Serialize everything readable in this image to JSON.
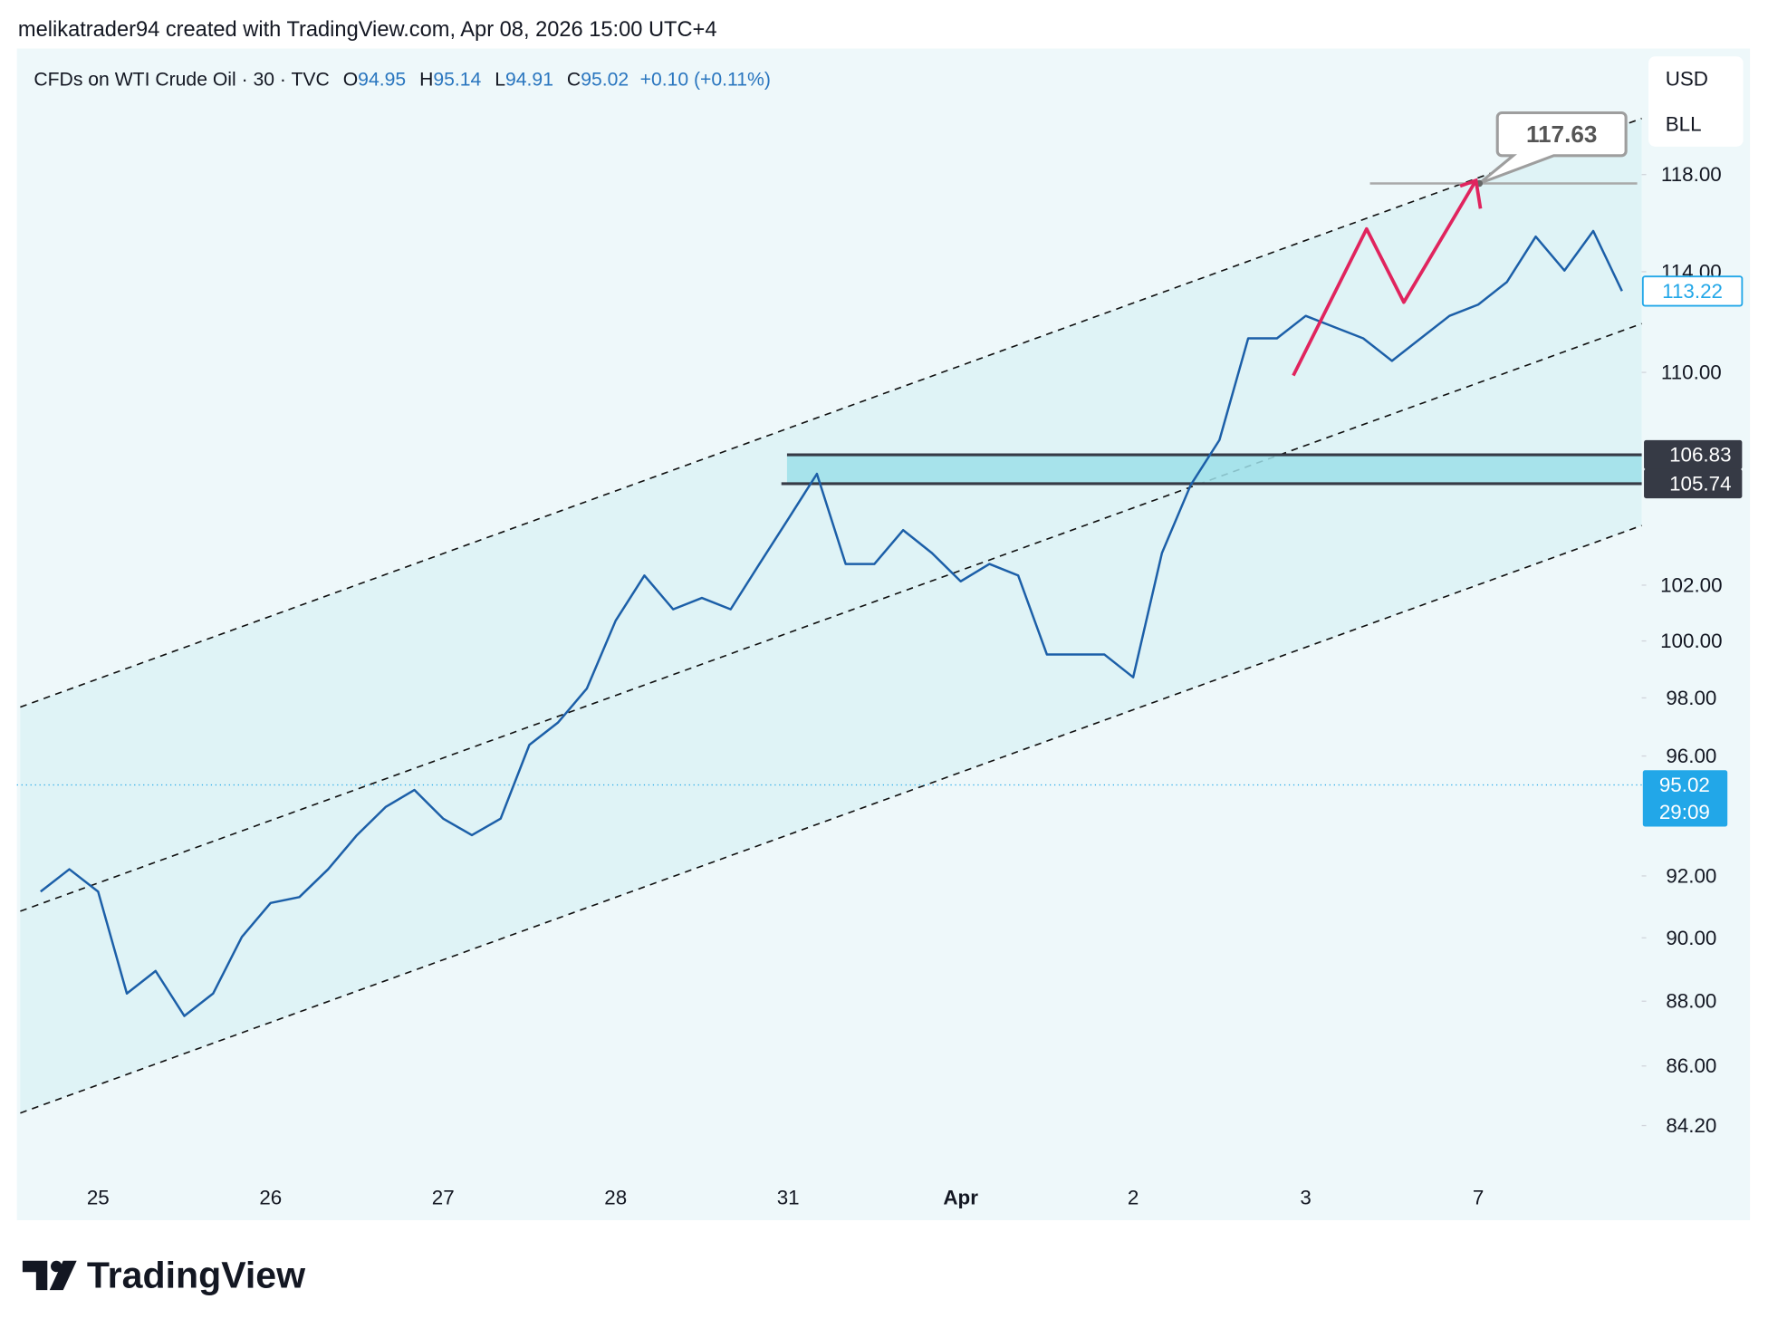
{
  "header": {
    "author_line": "melikatrader94 created with TradingView.com, Apr 08, 2026 15:00 UTC+4"
  },
  "chart_data": {
    "type": "line",
    "title": "CFDs on WTI Crude Oil · 30 · TVC",
    "ohlc": [
      {
        "label": "O",
        "value": 94.95
      },
      {
        "label": "H",
        "value": 95.14
      },
      {
        "label": "L",
        "value": 94.91
      },
      {
        "label": "C",
        "value": 95.02
      }
    ],
    "change": "+0.10 (+0.11%)",
    "currency": "USD",
    "unit": "BLL",
    "categories": [
      null,
      null,
      "25",
      null,
      null,
      null,
      null,
      null,
      "26",
      null,
      null,
      null,
      null,
      null,
      "27",
      null,
      null,
      null,
      null,
      null,
      "28",
      null,
      null,
      null,
      null,
      null,
      "31",
      null,
      null,
      null,
      null,
      null,
      "Apr",
      null,
      null,
      null,
      null,
      null,
      "2",
      null,
      null,
      null,
      null,
      null,
      "3",
      null,
      null,
      null,
      null,
      null,
      "7",
      null,
      null,
      null,
      null,
      null
    ],
    "series": [
      {
        "color": "#1c5fa8",
        "values": [
          91.49,
          92.22,
          91.49,
          88.24,
          88.95,
          87.54,
          88.24,
          90.03,
          91.12,
          91.31,
          92.22,
          93.34,
          94.28,
          94.85,
          93.89,
          93.34,
          93.89,
          96.38,
          97.15,
          98.33,
          100.72,
          102.35,
          101.13,
          101.54,
          101.13,
          102.77,
          104.42,
          106.11,
          102.77,
          102.77,
          104.01,
          103.17,
          102.14,
          102.77,
          102.35,
          99.52,
          99.52,
          99.52,
          98.72,
          103.17,
          105.69,
          107.39,
          111.34,
          111.34,
          112.23,
          111.78,
          111.34,
          110.45,
          111.34,
          112.23,
          112.68,
          113.59,
          115.43,
          114.05,
          115.66,
          113.22
        ]
      }
    ],
    "ylim": [
      82.8,
      123.3
    ],
    "log_scale": true,
    "yticks": [
      {
        "value": 118,
        "label": "118.00"
      },
      {
        "value": 114,
        "label": "114.00"
      },
      {
        "value": 110,
        "label": "110.00"
      },
      {
        "value": 102,
        "label": "102.00"
      },
      {
        "value": 100,
        "label": "100.00"
      },
      {
        "value": 98,
        "label": "98.00"
      },
      {
        "value": 96,
        "label": "96.00"
      },
      {
        "value": 92,
        "label": "92.00"
      },
      {
        "value": 90,
        "label": "90.00"
      },
      {
        "value": 88,
        "label": "88.00"
      },
      {
        "value": 86,
        "label": "86.00"
      },
      {
        "value": 84.2,
        "label": "84.20"
      }
    ],
    "levels": [
      106.83,
      105.74
    ],
    "target": 117.63,
    "last_price": 113.22,
    "current_price": 95.02,
    "countdown": "29:09"
  },
  "footer": {
    "brand": "TradingView"
  }
}
